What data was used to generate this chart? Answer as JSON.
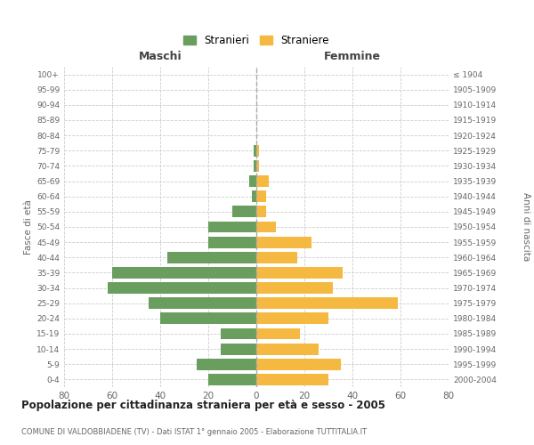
{
  "age_groups": [
    "0-4",
    "5-9",
    "10-14",
    "15-19",
    "20-24",
    "25-29",
    "30-34",
    "35-39",
    "40-44",
    "45-49",
    "50-54",
    "55-59",
    "60-64",
    "65-69",
    "70-74",
    "75-79",
    "80-84",
    "85-89",
    "90-94",
    "95-99",
    "100+"
  ],
  "birth_years": [
    "2000-2004",
    "1995-1999",
    "1990-1994",
    "1985-1989",
    "1980-1984",
    "1975-1979",
    "1970-1974",
    "1965-1969",
    "1960-1964",
    "1955-1959",
    "1950-1954",
    "1945-1949",
    "1940-1944",
    "1935-1939",
    "1930-1934",
    "1925-1929",
    "1920-1924",
    "1915-1919",
    "1910-1914",
    "1905-1909",
    "≤ 1904"
  ],
  "maschi": [
    20,
    25,
    15,
    15,
    40,
    45,
    62,
    60,
    37,
    20,
    20,
    10,
    2,
    3,
    1,
    1,
    0,
    0,
    0,
    0,
    0
  ],
  "femmine": [
    30,
    35,
    26,
    18,
    30,
    59,
    32,
    36,
    17,
    23,
    8,
    4,
    4,
    5,
    1,
    1,
    0,
    0,
    0,
    0,
    0
  ],
  "color_maschi": "#6a9e5e",
  "color_femmine": "#f5b942",
  "title": "Popolazione per cittadinanza straniera per età e sesso - 2005",
  "subtitle": "COMUNE DI VALDOBBIADENE (TV) - Dati ISTAT 1° gennaio 2005 - Elaborazione TUTTITALIA.IT",
  "xlabel_left": "Maschi",
  "xlabel_right": "Femmine",
  "ylabel_left": "Fasce di età",
  "ylabel_right": "Anni di nascita",
  "legend_maschi": "Stranieri",
  "legend_femmine": "Straniere",
  "xlim": 80,
  "background_color": "#ffffff",
  "grid_color": "#cccccc"
}
